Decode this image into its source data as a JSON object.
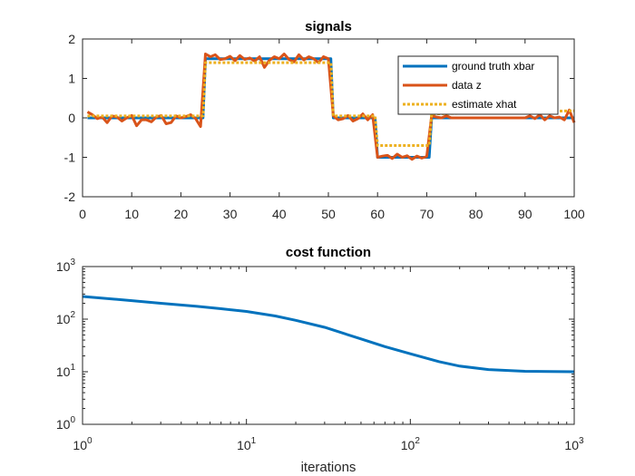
{
  "colors": {
    "blue": "#0072BD",
    "orange": "#D95319",
    "yellow": "#EDB120",
    "axis": "#262626"
  },
  "chart_data": [
    {
      "type": "line",
      "title": "signals",
      "xlabel": "",
      "ylabel": "",
      "xlim": [
        0,
        100
      ],
      "ylim": [
        -2,
        2
      ],
      "xticks": [
        0,
        10,
        20,
        30,
        40,
        50,
        60,
        70,
        80,
        90,
        100
      ],
      "yticks": [
        -2,
        -1,
        0,
        1,
        2
      ],
      "xtick_labels": [
        "0",
        "10",
        "20",
        "30",
        "40",
        "50",
        "60",
        "70",
        "80",
        "90",
        "100"
      ],
      "ytick_labels": [
        "-2",
        "-1",
        "0",
        "1",
        "2"
      ],
      "legend_position": "top-right",
      "series": [
        {
          "name": "ground truth xbar",
          "color": "#0072BD",
          "style": "solid",
          "x": [
            1,
            24,
            24.5,
            25,
            50,
            50.5,
            51,
            59,
            59.5,
            60,
            70,
            70.5,
            71,
            100
          ],
          "y": [
            0,
            0,
            0,
            1.5,
            1.5,
            1.5,
            0,
            0,
            0,
            -1,
            -1,
            -1,
            0,
            0
          ]
        },
        {
          "name": "data z",
          "color": "#D95319",
          "style": "solid",
          "x": [
            1,
            2,
            3,
            4,
            5,
            6,
            7,
            8,
            9,
            10,
            11,
            12,
            13,
            14,
            15,
            16,
            17,
            18,
            19,
            20,
            21,
            22,
            23,
            24,
            25,
            26,
            27,
            28,
            29,
            30,
            31,
            32,
            33,
            34,
            35,
            36,
            37,
            38,
            39,
            40,
            41,
            42,
            43,
            44,
            45,
            46,
            47,
            48,
            49,
            50,
            51,
            52,
            53,
            54,
            55,
            56,
            57,
            58,
            59,
            60,
            61,
            62,
            63,
            64,
            65,
            66,
            67,
            68,
            69,
            70,
            71,
            72,
            73,
            74,
            75,
            76,
            77,
            78,
            79,
            80,
            81,
            82,
            83,
            84,
            85,
            86,
            87,
            88,
            89,
            90,
            91,
            92,
            93,
            94,
            95,
            96,
            97,
            98,
            99,
            100
          ],
          "y": [
            0.15,
            0.08,
            -0.02,
            0.02,
            -0.12,
            0.05,
            0.02,
            -0.08,
            0.0,
            0.06,
            -0.2,
            -0.05,
            -0.05,
            -0.1,
            0.02,
            0.06,
            -0.15,
            -0.12,
            0.05,
            0.0,
            0.03,
            0.08,
            -0.02,
            -0.22,
            1.62,
            1.55,
            1.6,
            1.48,
            1.5,
            1.56,
            1.45,
            1.58,
            1.48,
            1.52,
            1.44,
            1.55,
            1.28,
            1.46,
            1.55,
            1.5,
            1.62,
            1.48,
            1.42,
            1.6,
            1.47,
            1.55,
            1.5,
            1.4,
            1.55,
            1.5,
            0.05,
            -0.05,
            -0.02,
            0.06,
            -0.08,
            -0.02,
            0.1,
            -0.05,
            0.08,
            -1.0,
            -0.97,
            -0.95,
            -1.03,
            -0.92,
            -1.0,
            -0.96,
            -1.05,
            -0.97,
            -1.02,
            -0.98,
            0.05,
            0.02,
            0.0,
            0.05,
            0.0,
            0.0,
            0.0,
            0.0,
            0.0,
            0.0,
            0.0,
            0.0,
            0.0,
            0.0,
            0.0,
            0.0,
            0.0,
            0.0,
            0.0,
            0.0,
            0.05,
            -0.02,
            0.08,
            -0.05,
            0.05,
            0.0,
            0.02,
            -0.05,
            0.2,
            -0.12
          ]
        },
        {
          "name": "estimate xhat",
          "color": "#EDB120",
          "style": "dotted",
          "x": [
            1,
            24,
            24.5,
            25,
            50,
            50.5,
            51,
            59,
            59.5,
            60,
            70,
            70.5,
            71,
            100
          ],
          "y": [
            0.05,
            0.05,
            0.05,
            1.4,
            1.4,
            1.4,
            0.05,
            0.05,
            0.05,
            -0.7,
            -0.7,
            -0.7,
            0.1,
            0.18
          ]
        }
      ]
    },
    {
      "type": "line",
      "title": "cost function",
      "xlabel": "iterations",
      "ylabel": "",
      "xscale": "log",
      "yscale": "log",
      "xlim": [
        1,
        1000
      ],
      "ylim": [
        1,
        1000
      ],
      "xticks": [
        1,
        10,
        100,
        1000
      ],
      "yticks": [
        1,
        10,
        100,
        1000
      ],
      "xtick_labels": [
        {
          "base": "10",
          "exp": "0"
        },
        {
          "base": "10",
          "exp": "1"
        },
        {
          "base": "10",
          "exp": "2"
        },
        {
          "base": "10",
          "exp": "3"
        }
      ],
      "ytick_labels": [
        {
          "base": "10",
          "exp": "0"
        },
        {
          "base": "10",
          "exp": "1"
        },
        {
          "base": "10",
          "exp": "2"
        },
        {
          "base": "10",
          "exp": "3"
        }
      ],
      "grid": false,
      "series": [
        {
          "color": "#0072BD",
          "x": [
            1,
            2,
            3,
            5,
            7,
            10,
            15,
            20,
            30,
            50,
            70,
            100,
            150,
            200,
            300,
            500,
            700,
            1000
          ],
          "y": [
            270,
            225,
            200,
            175,
            158,
            140,
            115,
            95,
            70,
            42,
            30,
            22,
            15.5,
            12.8,
            11,
            10.2,
            10.1,
            10
          ]
        }
      ]
    }
  ]
}
